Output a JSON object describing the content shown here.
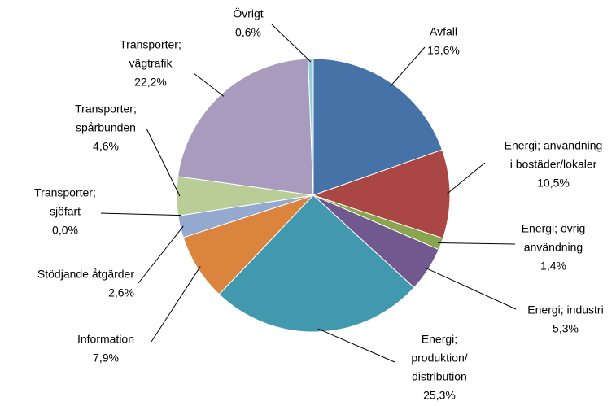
{
  "chart_data": {
    "type": "pie",
    "categories": [
      [
        "Avfall"
      ],
      [
        "Energi; användning",
        "i bostäder/lokaler"
      ],
      [
        "Energi; övrig",
        "användning"
      ],
      [
        "Energi; industri"
      ],
      [
        "Energi;",
        "produktion/",
        "distribution"
      ],
      [
        "Information"
      ],
      [
        "Stödjande åtgärder"
      ],
      [
        "Transporter;",
        "sjöfart"
      ],
      [
        "Transporter;",
        "spårbunden"
      ],
      [
        "Transporter;",
        "vägtrafik"
      ],
      [
        "Övrigt"
      ]
    ],
    "values": [
      19.6,
      10.5,
      1.4,
      5.3,
      25.3,
      7.9,
      2.6,
      0.0,
      4.6,
      22.2,
      0.6
    ],
    "value_labels": [
      "19,6%",
      "10,5%",
      "1,4%",
      "5,3%",
      "25,3%",
      "7,9%",
      "2,6%",
      "0,0%",
      "4,6%",
      "22,2%",
      "0,6%"
    ],
    "colors": [
      "#4572a7",
      "#aa4643",
      "#89a54e",
      "#71588f",
      "#4198af",
      "#db843d",
      "#93a9cf",
      "#d19392",
      "#b9cd96",
      "#a99bbd",
      "#92cddc"
    ]
  }
}
